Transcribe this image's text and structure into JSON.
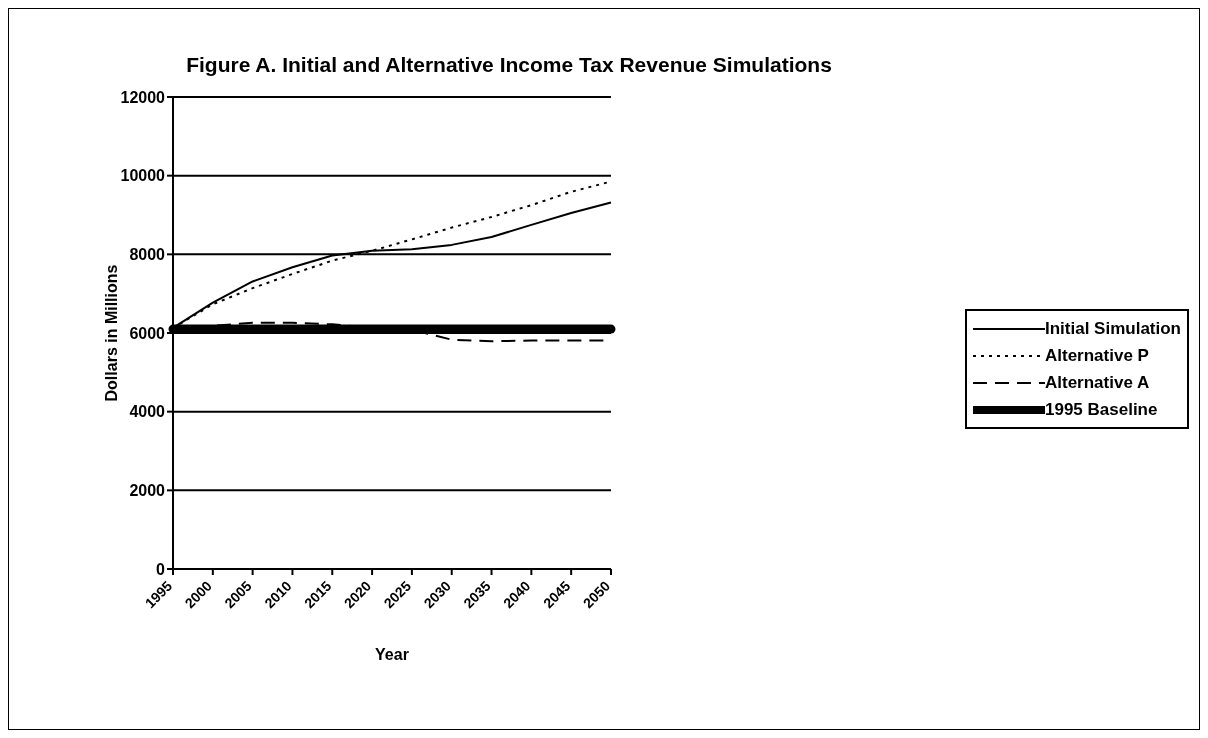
{
  "chart_data": {
    "type": "line",
    "title": "Figure A.  Initial and Alternative Income Tax Revenue Simulations",
    "xlabel": "Year",
    "ylabel": "Dollars in Millions",
    "categories": [
      "1995",
      "2000",
      "2005",
      "2010",
      "2015",
      "2020",
      "2025",
      "2030",
      "2035",
      "2040",
      "2045",
      "2050"
    ],
    "series": [
      {
        "name": "Initial Simulation",
        "color": "#000000",
        "line_style": "solid",
        "values": [
          6130,
          6770,
          7310,
          7670,
          7970,
          8090,
          8130,
          8240,
          8440,
          8750,
          9050,
          9320
        ]
      },
      {
        "name": "Alternative P",
        "color": "#000000",
        "line_style": "dotted",
        "values": [
          6130,
          6730,
          7140,
          7500,
          7840,
          8090,
          8380,
          8680,
          8950,
          9250,
          9590,
          9850
        ]
      },
      {
        "name": "Alternative A",
        "color": "#000000",
        "line_style": "dashed",
        "values": [
          6130,
          6180,
          6260,
          6260,
          6220,
          6130,
          6080,
          5830,
          5790,
          5810,
          5810,
          5810
        ]
      },
      {
        "name": "1995 Baseline",
        "color": "#000000",
        "line_style": "solid",
        "values": [
          6100,
          6100,
          6100,
          6100,
          6100,
          6100,
          6100,
          6100,
          6100,
          6100,
          6100,
          6100
        ]
      }
    ],
    "ylim": [
      0,
      12000
    ],
    "yticks": [
      0,
      2000,
      4000,
      6000,
      8000,
      10000,
      12000
    ],
    "grid": "y",
    "legend": "right",
    "marker": "none"
  }
}
